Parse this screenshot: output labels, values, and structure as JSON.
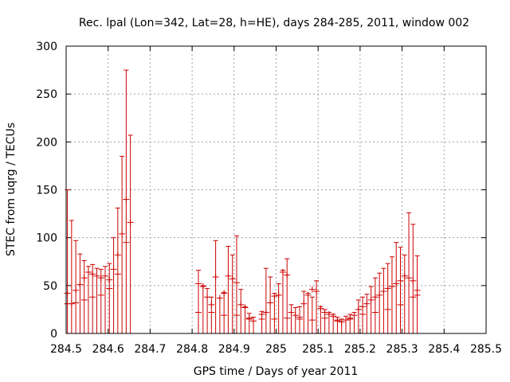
{
  "chart_data": {
    "type": "scatter",
    "title": "Rec. lpal (Lon=342, Lat=28, h=HE), days 284-285, 2011, window 002",
    "xlabel": "GPS time / Days of year 2011",
    "ylabel": "STEC from uqrg / TECUs",
    "xlim": [
      284.5,
      285.5
    ],
    "ylim": [
      0,
      300
    ],
    "xticks": [
      "284.5",
      "284.6",
      "284.7",
      "284.8",
      "284.9",
      "285",
      "285.1",
      "285.2",
      "285.3",
      "285.4",
      "285.5"
    ],
    "yticks": [
      "0",
      "50",
      "100",
      "150",
      "200",
      "250",
      "300"
    ],
    "grid": true,
    "color": "#cc0000",
    "series": [
      {
        "points": [
          [
            284.503,
            42,
            150
          ],
          [
            284.513,
            31,
            118
          ],
          [
            284.523,
            45,
            97
          ],
          [
            284.533,
            51,
            83
          ],
          [
            284.543,
            58,
            76
          ],
          [
            284.553,
            64,
            70
          ],
          [
            284.563,
            62,
            72
          ],
          [
            284.573,
            60,
            68
          ],
          [
            284.583,
            58,
            67
          ],
          [
            284.593,
            60,
            70
          ],
          [
            284.603,
            56,
            73
          ],
          [
            284.613,
            67,
            100
          ],
          [
            284.623,
            82,
            131
          ],
          [
            284.633,
            104,
            185
          ],
          [
            284.643,
            140,
            275
          ],
          [
            284.653,
            116,
            207
          ],
          [
            284.815,
            52,
            66
          ],
          [
            284.826,
            49,
            50
          ],
          [
            284.836,
            38,
            47
          ],
          [
            284.846,
            30,
            38
          ],
          [
            284.856,
            59,
            97
          ],
          [
            284.866,
            37,
            37
          ],
          [
            284.876,
            42,
            43
          ],
          [
            284.886,
            60,
            91
          ],
          [
            284.896,
            57,
            82
          ],
          [
            284.906,
            53,
            102
          ],
          [
            284.916,
            30,
            46
          ],
          [
            284.926,
            27,
            28
          ],
          [
            284.936,
            16,
            21
          ],
          [
            284.946,
            13,
            17
          ],
          [
            284.966,
            20,
            23
          ],
          [
            284.976,
            22,
            68
          ],
          [
            284.986,
            32,
            59
          ],
          [
            284.996,
            39,
            42
          ],
          [
            285.006,
            40,
            52
          ],
          [
            285.016,
            64,
            66
          ],
          [
            285.026,
            61,
            78
          ],
          [
            285.036,
            22,
            30
          ],
          [
            285.046,
            19,
            27
          ],
          [
            285.056,
            17,
            28
          ],
          [
            285.066,
            31,
            44
          ],
          [
            285.076,
            40,
            42
          ],
          [
            285.086,
            46,
            38
          ],
          [
            285.096,
            44,
            55
          ],
          [
            285.106,
            26,
            28
          ],
          [
            285.116,
            22,
            25
          ],
          [
            285.126,
            20,
            22
          ],
          [
            285.136,
            18,
            20
          ],
          [
            285.146,
            14,
            17
          ],
          [
            285.156,
            12,
            15
          ],
          [
            285.166,
            14,
            18
          ],
          [
            285.176,
            16,
            20
          ],
          [
            285.186,
            19,
            22
          ],
          [
            285.196,
            25,
            35
          ],
          [
            285.206,
            28,
            38
          ],
          [
            285.216,
            31,
            41
          ],
          [
            285.226,
            35,
            49
          ],
          [
            285.236,
            38,
            58
          ],
          [
            285.246,
            40,
            63
          ],
          [
            285.256,
            44,
            68
          ],
          [
            285.266,
            47,
            73
          ],
          [
            285.276,
            49,
            80
          ],
          [
            285.286,
            52,
            95
          ],
          [
            285.296,
            55,
            90
          ],
          [
            285.306,
            60,
            82
          ],
          [
            285.316,
            58,
            126
          ],
          [
            285.326,
            55,
            114
          ],
          [
            285.336,
            45,
            81
          ]
        ],
        "lower": [
          [
            284.503,
            31
          ],
          [
            284.523,
            32
          ],
          [
            284.543,
            35
          ],
          [
            284.563,
            38
          ],
          [
            284.583,
            40
          ],
          [
            284.603,
            47
          ],
          [
            284.623,
            62
          ],
          [
            284.643,
            95
          ],
          [
            284.815,
            22
          ],
          [
            284.846,
            22
          ],
          [
            284.876,
            19
          ],
          [
            284.906,
            19
          ],
          [
            284.936,
            15
          ],
          [
            284.966,
            15
          ],
          [
            284.996,
            15
          ],
          [
            285.026,
            16
          ],
          [
            285.056,
            15
          ],
          [
            285.086,
            14
          ],
          [
            285.116,
            16
          ],
          [
            285.146,
            13
          ],
          [
            285.176,
            15
          ],
          [
            285.206,
            20
          ],
          [
            285.236,
            22
          ],
          [
            285.266,
            25
          ],
          [
            285.296,
            30
          ],
          [
            285.326,
            38
          ],
          [
            285.336,
            40
          ]
        ]
      }
    ]
  }
}
